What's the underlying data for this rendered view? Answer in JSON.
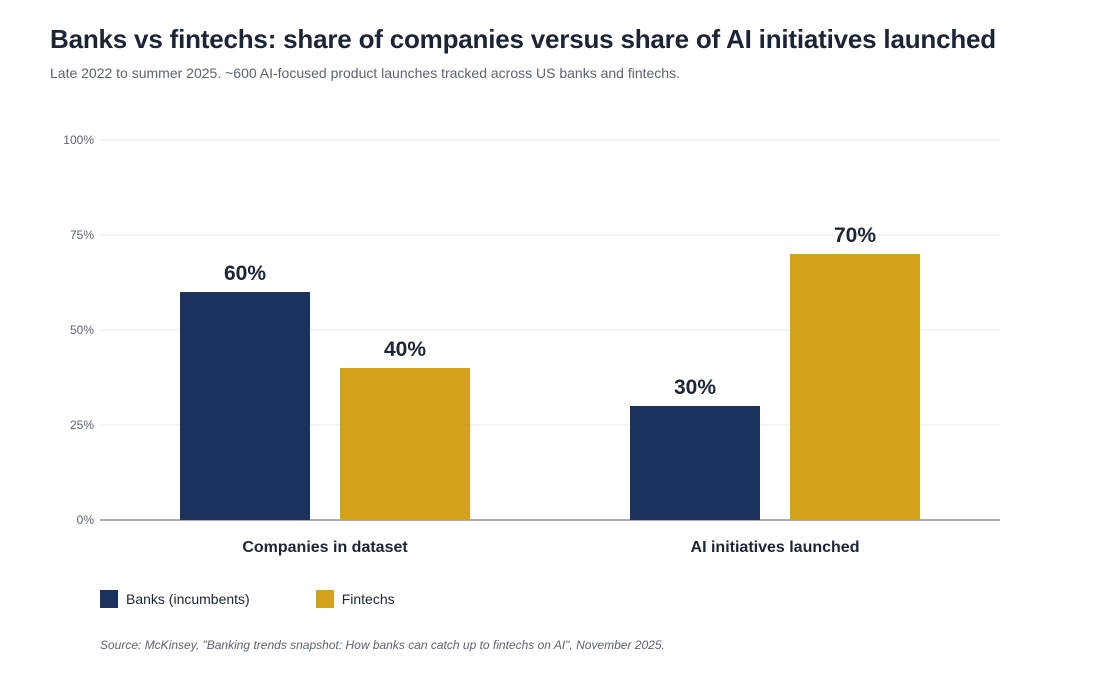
{
  "title": "Banks vs fintechs: share of companies versus share of AI initiatives launched",
  "subtitle": "Late 2022 to summer 2025. ~600 AI-focused product launches tracked across US banks and fintechs.",
  "source": "Source: McKinsey, \"Banking trends snapshot: How banks can catch up to fintechs on AI\", November 2025.",
  "colors": {
    "banks": "#1b315e",
    "fintechs": "#d4a11a",
    "grid": "#e8eaee",
    "axis": "#8a8f98",
    "text": "#1c2536",
    "tick": "#5a6472"
  },
  "chart_data": {
    "type": "bar",
    "title": "Banks vs fintechs: share of companies versus share of AI initiatives launched",
    "subtitle": "Late 2022 to summer 2025. ~600 AI-focused product launches tracked across US banks and fintechs.",
    "categories": [
      "Companies in dataset",
      "AI initiatives launched"
    ],
    "series": [
      {
        "name": "Banks (incumbents)",
        "values": [
          60,
          30
        ],
        "labels": [
          "60%",
          "30%"
        ]
      },
      {
        "name": "Fintechs",
        "values": [
          40,
          70
        ],
        "labels": [
          "40%",
          "70%"
        ]
      }
    ],
    "ylim": [
      0,
      100
    ],
    "yticks": [
      0,
      25,
      50,
      75,
      100
    ],
    "ytick_labels": [
      "0%",
      "25%",
      "50%",
      "75%",
      "100%"
    ],
    "grid": true,
    "legend": "bottom-left"
  }
}
